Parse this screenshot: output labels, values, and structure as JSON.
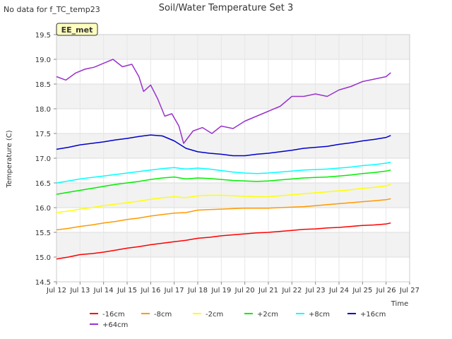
{
  "header": {
    "no_data_note": "No data for f_TC_temp23",
    "site_badge": "EE_met"
  },
  "chart_data": {
    "type": "line",
    "title": "Soil/Water Temperature Set 3",
    "xlabel": "Time",
    "ylabel": "Temperature (C)",
    "xlim": [
      12,
      27
    ],
    "ylim": [
      14.5,
      19.5
    ],
    "x_ticks": [
      12,
      13,
      14,
      15,
      16,
      17,
      18,
      19,
      20,
      21,
      22,
      23,
      24,
      25,
      26,
      27
    ],
    "x_tick_labels": [
      "Jul 12",
      "Jul 13",
      "Jul 14",
      "Jul 15",
      "Jul 16",
      "Jul 17",
      "Jul 18",
      "Jul 19",
      "Jul 20",
      "Jul 21",
      "Jul 22",
      "Jul 23",
      "Jul 24",
      "Jul 25",
      "Jul 26",
      "Jul 27"
    ],
    "y_ticks": [
      14.5,
      15.0,
      15.5,
      16.0,
      16.5,
      17.0,
      17.5,
      18.0,
      18.5,
      19.0,
      19.5
    ],
    "y_tick_labels": [
      "14.5",
      "15.0",
      "15.5",
      "16.0",
      "16.5",
      "17.0",
      "17.5",
      "18.0",
      "18.5",
      "19.0",
      "19.5"
    ],
    "grid": true,
    "legend_position": "bottom",
    "series": [
      {
        "name": "-16cm",
        "color": "#ff0000",
        "x": [
          12.0,
          12.5,
          13.0,
          13.5,
          14.0,
          14.5,
          15.0,
          15.5,
          16.0,
          16.5,
          17.0,
          17.5,
          18.0,
          18.5,
          19.0,
          19.5,
          20.0,
          20.5,
          21.0,
          21.5,
          22.0,
          22.5,
          23.0,
          23.5,
          24.0,
          24.5,
          25.0,
          25.5,
          26.0,
          26.2
        ],
        "y": [
          14.96,
          15.0,
          15.05,
          15.07,
          15.1,
          15.14,
          15.18,
          15.21,
          15.25,
          15.28,
          15.31,
          15.34,
          15.38,
          15.4,
          15.43,
          15.45,
          15.47,
          15.49,
          15.5,
          15.52,
          15.54,
          15.56,
          15.57,
          15.59,
          15.6,
          15.62,
          15.64,
          15.65,
          15.67,
          15.69
        ]
      },
      {
        "name": "-8cm",
        "color": "#ff9900",
        "x": [
          12.0,
          12.5,
          13.0,
          13.5,
          14.0,
          14.5,
          15.0,
          15.5,
          16.0,
          16.5,
          17.0,
          17.5,
          18.0,
          18.5,
          19.0,
          19.5,
          20.0,
          20.5,
          21.0,
          21.5,
          22.0,
          22.5,
          23.0,
          23.5,
          24.0,
          24.5,
          25.0,
          25.5,
          26.0,
          26.2
        ],
        "y": [
          15.55,
          15.58,
          15.62,
          15.65,
          15.69,
          15.72,
          15.76,
          15.79,
          15.83,
          15.86,
          15.89,
          15.9,
          15.95,
          15.96,
          15.97,
          15.98,
          15.99,
          15.99,
          15.99,
          16.0,
          16.01,
          16.02,
          16.04,
          16.06,
          16.08,
          16.1,
          16.12,
          16.14,
          16.16,
          16.18
        ]
      },
      {
        "name": "-2cm",
        "color": "#ffff00",
        "x": [
          12.0,
          12.5,
          13.0,
          13.5,
          14.0,
          14.5,
          15.0,
          15.5,
          16.0,
          16.5,
          17.0,
          17.5,
          18.0,
          18.5,
          19.0,
          19.5,
          20.0,
          20.5,
          21.0,
          21.5,
          22.0,
          22.5,
          23.0,
          23.5,
          24.0,
          24.5,
          25.0,
          25.5,
          26.0,
          26.2
        ],
        "y": [
          15.9,
          15.93,
          15.97,
          16.0,
          16.04,
          16.07,
          16.1,
          16.13,
          16.17,
          16.2,
          16.22,
          16.2,
          16.24,
          16.25,
          16.25,
          16.24,
          16.23,
          16.22,
          16.22,
          16.24,
          16.26,
          16.28,
          16.3,
          16.32,
          16.34,
          16.36,
          16.39,
          16.41,
          16.44,
          16.47
        ]
      },
      {
        "name": "+2cm",
        "color": "#00ee00",
        "x": [
          12.0,
          12.5,
          13.0,
          13.5,
          14.0,
          14.5,
          15.0,
          15.5,
          16.0,
          16.5,
          17.0,
          17.5,
          18.0,
          18.5,
          19.0,
          19.5,
          20.0,
          20.5,
          21.0,
          21.5,
          22.0,
          22.5,
          23.0,
          23.5,
          24.0,
          24.5,
          25.0,
          25.5,
          26.0,
          26.2
        ],
        "y": [
          16.27,
          16.31,
          16.35,
          16.39,
          16.43,
          16.47,
          16.5,
          16.53,
          16.57,
          16.6,
          16.62,
          16.58,
          16.6,
          16.59,
          16.57,
          16.55,
          16.54,
          16.53,
          16.54,
          16.56,
          16.58,
          16.6,
          16.61,
          16.62,
          16.64,
          16.66,
          16.69,
          16.71,
          16.74,
          16.76
        ]
      },
      {
        "name": "+8cm",
        "color": "#00ffff",
        "x": [
          12.0,
          12.5,
          13.0,
          13.5,
          14.0,
          14.5,
          15.0,
          15.5,
          16.0,
          16.5,
          17.0,
          17.5,
          18.0,
          18.5,
          19.0,
          19.5,
          20.0,
          20.5,
          21.0,
          21.5,
          22.0,
          22.5,
          23.0,
          23.5,
          24.0,
          24.5,
          25.0,
          25.5,
          26.0,
          26.2
        ],
        "y": [
          16.5,
          16.54,
          16.58,
          16.61,
          16.64,
          16.67,
          16.7,
          16.73,
          16.76,
          16.79,
          16.81,
          16.78,
          16.8,
          16.78,
          16.75,
          16.72,
          16.7,
          16.69,
          16.7,
          16.72,
          16.74,
          16.76,
          16.77,
          16.78,
          16.8,
          16.82,
          16.85,
          16.87,
          16.9,
          16.92
        ]
      },
      {
        "name": "+16cm",
        "color": "#0000cc",
        "x": [
          12.0,
          12.5,
          13.0,
          13.5,
          14.0,
          14.5,
          15.0,
          15.5,
          16.0,
          16.5,
          17.0,
          17.5,
          18.0,
          18.5,
          19.0,
          19.5,
          20.0,
          20.5,
          21.0,
          21.5,
          22.0,
          22.5,
          23.0,
          23.5,
          24.0,
          24.5,
          25.0,
          25.5,
          26.0,
          26.2
        ],
        "y": [
          17.18,
          17.22,
          17.27,
          17.3,
          17.33,
          17.37,
          17.4,
          17.44,
          17.47,
          17.45,
          17.35,
          17.2,
          17.13,
          17.1,
          17.08,
          17.05,
          17.05,
          17.08,
          17.1,
          17.13,
          17.16,
          17.2,
          17.22,
          17.24,
          17.28,
          17.31,
          17.35,
          17.38,
          17.42,
          17.46
        ]
      },
      {
        "name": "+64cm",
        "color": "#9933cc",
        "x": [
          12.0,
          12.4,
          12.8,
          13.2,
          13.6,
          14.0,
          14.4,
          14.8,
          15.2,
          15.5,
          15.7,
          16.0,
          16.3,
          16.6,
          16.9,
          17.2,
          17.4,
          17.8,
          18.2,
          18.6,
          19.0,
          19.5,
          20.0,
          20.5,
          21.0,
          21.5,
          22.0,
          22.5,
          23.0,
          23.5,
          24.0,
          24.5,
          25.0,
          25.5,
          26.0,
          26.2
        ],
        "y": [
          18.65,
          18.58,
          18.72,
          18.8,
          18.84,
          18.92,
          19.0,
          18.85,
          18.9,
          18.65,
          18.35,
          18.48,
          18.2,
          17.85,
          17.9,
          17.65,
          17.3,
          17.55,
          17.62,
          17.5,
          17.65,
          17.6,
          17.75,
          17.85,
          17.95,
          18.05,
          18.25,
          18.25,
          18.3,
          18.25,
          18.38,
          18.45,
          18.55,
          18.6,
          18.65,
          18.73
        ]
      }
    ]
  }
}
